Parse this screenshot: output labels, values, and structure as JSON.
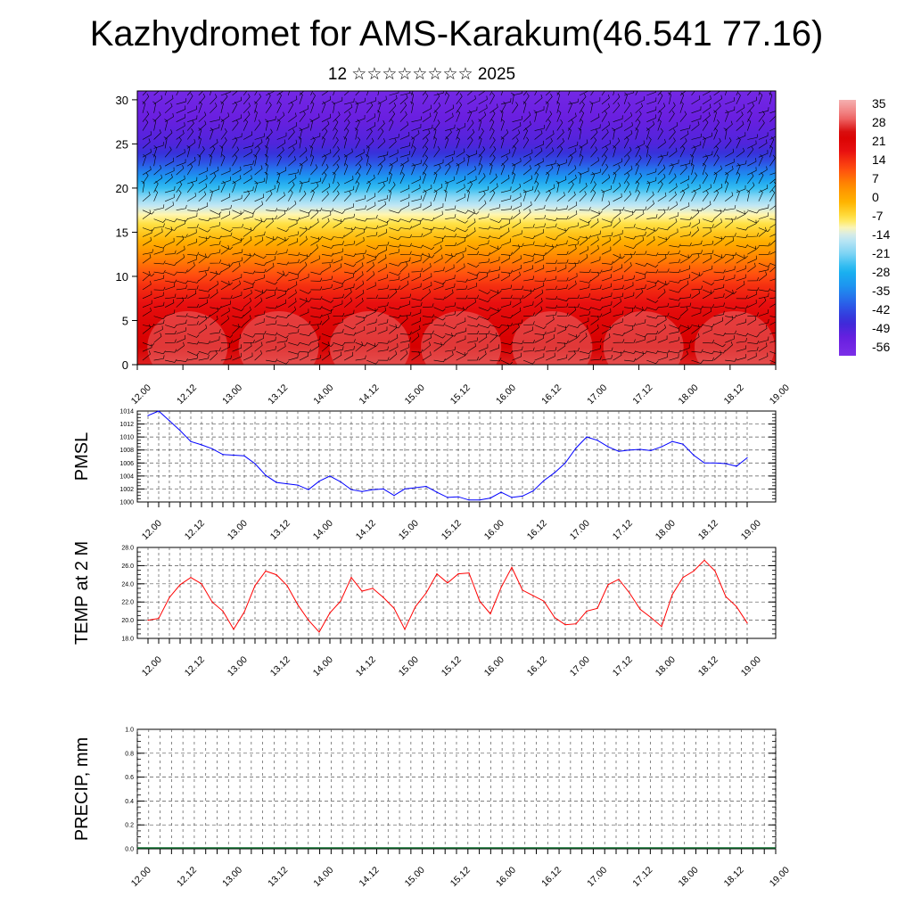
{
  "header": {
    "title": "Kazhydromet for AMS-Karakum(46.541 77.16)",
    "subtitle": "12 ☆☆☆☆☆☆☆☆ 2025"
  },
  "time_labels": [
    "12.00",
    "12.12",
    "13.00",
    "13.12",
    "14.00",
    "14.12",
    "15.00",
    "15.12",
    "16.00",
    "16.12",
    "17.00",
    "17.12",
    "18.00",
    "18.12",
    "19.00"
  ],
  "chart_data": [
    {
      "type": "heatmap",
      "name": "temperature-wind-cross-section",
      "y_ticks": [
        0,
        5,
        10,
        15,
        20,
        25,
        30
      ],
      "ylim": [
        0,
        31
      ],
      "colorbar": {
        "labels": [
          "35",
          "28",
          "21",
          "14",
          "7",
          "0",
          "-7",
          "-14",
          "-21",
          "-28",
          "-35",
          "-42",
          "-49",
          "-56"
        ],
        "range": [
          -63,
          42
        ],
        "stops": [
          {
            "v": -63,
            "c": "#7b2fe8"
          },
          {
            "v": -56,
            "c": "#6a1fe0"
          },
          {
            "v": -49,
            "c": "#3a2ad8"
          },
          {
            "v": -42,
            "c": "#2a5ce8"
          },
          {
            "v": -35,
            "c": "#1e90f0"
          },
          {
            "v": -28,
            "c": "#18b4f0"
          },
          {
            "v": -21,
            "c": "#7ed4f4"
          },
          {
            "v": -14,
            "c": "#cdeaf4"
          },
          {
            "v": -10,
            "c": "#fff5b0"
          },
          {
            "v": -7,
            "c": "#ffe64d"
          },
          {
            "v": 0,
            "c": "#ffb400"
          },
          {
            "v": 7,
            "c": "#ff8a00"
          },
          {
            "v": 14,
            "c": "#ff4a10"
          },
          {
            "v": 21,
            "c": "#e81010"
          },
          {
            "v": 28,
            "c": "#d60000"
          },
          {
            "v": 35,
            "c": "#f07070"
          },
          {
            "v": 42,
            "c": "#f4b0b0"
          }
        ]
      },
      "profile": [
        {
          "h": 0,
          "t": 30
        },
        {
          "h": 5,
          "t": 25
        },
        {
          "h": 9,
          "t": 17
        },
        {
          "h": 12,
          "t": 8
        },
        {
          "h": 15,
          "t": -3
        },
        {
          "h": 17,
          "t": -10
        },
        {
          "h": 19,
          "t": -20
        },
        {
          "h": 21,
          "t": -32
        },
        {
          "h": 23,
          "t": -44
        },
        {
          "h": 25,
          "t": -52
        },
        {
          "h": 28,
          "t": -56
        },
        {
          "h": 31,
          "t": -60
        }
      ]
    },
    {
      "type": "line",
      "name": "pmsl",
      "ylabel": "PMSL",
      "ylim": [
        1000,
        1014
      ],
      "y_ticks": [
        1000,
        1002,
        1004,
        1006,
        1008,
        1010,
        1012,
        1014
      ],
      "color": "#0000ff",
      "x_step_hours": 3,
      "values": [
        1013.3,
        1014,
        1012.5,
        1011,
        1009.3,
        1008.8,
        1008.2,
        1007.3,
        1007.2,
        1007.1,
        1005.9,
        1004.1,
        1003,
        1002.8,
        1002.6,
        1001.9,
        1003.2,
        1004,
        1003.1,
        1001.9,
        1001.6,
        1001.9,
        1002,
        1001,
        1002,
        1002.2,
        1002.4,
        1001.5,
        1000.7,
        1000.8,
        1000.3,
        1000.3,
        1000.6,
        1001.5,
        1000.7,
        1000.9,
        1001.7,
        1003.3,
        1004.5,
        1006,
        1008.3,
        1010,
        1009.5,
        1008.5,
        1007.8,
        1008,
        1008.1,
        1007.9,
        1008.5,
        1009.3,
        1008.9,
        1007.2,
        1006,
        1006,
        1005.9,
        1005.5,
        1006.8
      ]
    },
    {
      "type": "line",
      "name": "temp-2m",
      "ylabel": "TEMP at 2 M",
      "ylim": [
        18,
        28
      ],
      "y_ticks": [
        "18.0",
        "20.0",
        "22.0",
        "24.0",
        "26.0",
        "28.0"
      ],
      "color": "#ff0000",
      "x_step_hours": 3,
      "values": [
        20,
        20.2,
        22.5,
        23.9,
        24.7,
        24,
        22,
        21,
        19,
        20.9,
        23.8,
        25.4,
        25,
        23.8,
        21.7,
        20,
        18.7,
        20.8,
        22.1,
        24.7,
        23.2,
        23.5,
        22.5,
        21.3,
        19,
        21.5,
        23,
        25.1,
        24.1,
        25.1,
        25.2,
        22.1,
        20.7,
        23.6,
        25.8,
        23.3,
        22.7,
        22.1,
        20.3,
        19.5,
        19.6,
        21,
        21.3,
        23.9,
        24.5,
        23,
        21.2,
        20.3,
        19.3,
        22.8,
        24.7,
        25.4,
        26.6,
        25.4,
        22.6,
        21.5,
        19.7
      ]
    },
    {
      "type": "bar",
      "name": "precip",
      "ylabel": "PRECIP, mm",
      "ylim": [
        0,
        1
      ],
      "y_ticks": [
        "0.0",
        "0.2",
        "0.4",
        "0.6",
        "0.8",
        "1.0"
      ],
      "values": []
    }
  ]
}
